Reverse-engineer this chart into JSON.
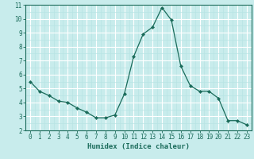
{
  "x": [
    0,
    1,
    2,
    3,
    4,
    5,
    6,
    7,
    8,
    9,
    10,
    11,
    12,
    13,
    14,
    15,
    16,
    17,
    18,
    19,
    20,
    21,
    22,
    23
  ],
  "y": [
    5.5,
    4.8,
    4.5,
    4.1,
    4.0,
    3.6,
    3.3,
    2.9,
    2.9,
    3.1,
    4.6,
    7.3,
    8.9,
    9.4,
    10.8,
    9.9,
    6.6,
    5.2,
    4.8,
    4.8,
    4.3,
    2.7,
    2.7,
    2.4
  ],
  "line_color": "#1a6b5a",
  "marker": "D",
  "marker_size": 2.2,
  "bg_color": "#c8ecec",
  "grid_major_color": "#ffffff",
  "grid_minor_color": "#b8e4e4",
  "xlabel": "Humidex (Indice chaleur)",
  "xlabel_fontsize": 6.5,
  "tick_fontsize": 5.5,
  "ylim": [
    2,
    11
  ],
  "xlim": [
    -0.5,
    23.5
  ],
  "yticks": [
    2,
    3,
    4,
    5,
    6,
    7,
    8,
    9,
    10,
    11
  ],
  "xticks": [
    0,
    1,
    2,
    3,
    4,
    5,
    6,
    7,
    8,
    9,
    10,
    11,
    12,
    13,
    14,
    15,
    16,
    17,
    18,
    19,
    20,
    21,
    22,
    23
  ]
}
